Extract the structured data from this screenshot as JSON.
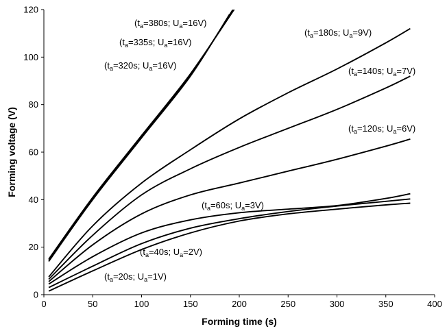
{
  "chart_data": {
    "type": "line",
    "xlabel": "Forming time (s)",
    "ylabel": "Forming voltage (V)",
    "xlim": [
      0,
      400
    ],
    "ylim": [
      0,
      120
    ],
    "xticks": [
      "0",
      "50",
      "100",
      "150",
      "200",
      "250",
      "300",
      "350",
      "400"
    ],
    "yticks": [
      "0",
      "20",
      "40",
      "60",
      "80",
      "100",
      "120"
    ],
    "grid": false,
    "series": [
      {
        "name": "(ta=20s; Ua=1V)",
        "x": [
          5,
          50,
          100,
          150,
          200,
          250,
          300,
          350,
          375
        ],
        "y": [
          1.5,
          10,
          19,
          26,
          31,
          34,
          36,
          37.8,
          38.5
        ]
      },
      {
        "name": "(ta=40s; Ua=2V)",
        "x": [
          5,
          50,
          100,
          150,
          200,
          250,
          300,
          350,
          375
        ],
        "y": [
          3,
          12,
          21.5,
          28,
          32,
          35,
          37.3,
          39.3,
          40.3
        ]
      },
      {
        "name": "(ta=60s; Ua=3V)",
        "x": [
          5,
          50,
          100,
          150,
          200,
          250,
          300,
          350,
          375
        ],
        "y": [
          4.5,
          16,
          26,
          31.5,
          34.5,
          36,
          37.5,
          40.5,
          42.5
        ]
      },
      {
        "name": "(ta=120s; Ua=6V)",
        "x": [
          5,
          50,
          100,
          150,
          200,
          250,
          300,
          350,
          375
        ],
        "y": [
          5.5,
          21,
          34,
          42,
          47,
          52,
          57,
          62.5,
          65.5
        ]
      },
      {
        "name": "(ta=140s; Ua=7V)",
        "x": [
          5,
          50,
          100,
          150,
          200,
          250,
          300,
          350,
          375
        ],
        "y": [
          6.5,
          25,
          42,
          53,
          62,
          70,
          78,
          87,
          92
        ]
      },
      {
        "name": "(ta=180s; Ua=9V)",
        "x": [
          5,
          50,
          100,
          150,
          200,
          250,
          300,
          350,
          375
        ],
        "y": [
          7.5,
          29,
          47,
          61,
          74,
          85,
          95,
          106,
          112
        ]
      },
      {
        "name": "(ta=320s; Ua=16V)",
        "x": [
          5,
          50,
          100,
          150,
          190
        ],
        "y": [
          14,
          40,
          66,
          92,
          118
        ]
      },
      {
        "name": "(ta=335s; Ua=16V)",
        "x": [
          5,
          50,
          100,
          150,
          195
        ],
        "y": [
          14.5,
          40.5,
          66.5,
          92.5,
          121
        ]
      },
      {
        "name": "(ta=380s; Ua=16V)",
        "x": [
          5,
          50,
          100,
          150,
          198
        ],
        "y": [
          15,
          41,
          67,
          93,
          122
        ]
      }
    ],
    "annotations": [
      {
        "pre": "(t",
        "sub1": "a",
        "mid": "=380s; U",
        "sub2": "a",
        "post": "=16V)"
      },
      {
        "pre": "(t",
        "sub1": "a",
        "mid": "=335s; U",
        "sub2": "a",
        "post": "=16V)"
      },
      {
        "pre": "(t",
        "sub1": "a",
        "mid": "=320s; U",
        "sub2": "a",
        "post": "=16V)"
      },
      {
        "pre": "(t",
        "sub1": "a",
        "mid": "=180s; U",
        "sub2": "a",
        "post": "=9V)"
      },
      {
        "pre": "(t",
        "sub1": "a",
        "mid": "=140s; U",
        "sub2": "a",
        "post": "=7V)"
      },
      {
        "pre": "(t",
        "sub1": "a",
        "mid": "=120s; U",
        "sub2": "a",
        "post": "=6V)"
      },
      {
        "pre": "(t",
        "sub1": "a",
        "mid": "=60s; U",
        "sub2": "a",
        "post": "=3V)"
      },
      {
        "pre": "(t",
        "sub1": "a",
        "mid": "=40s; U",
        "sub2": "a",
        "post": "=2V)"
      },
      {
        "pre": "(t",
        "sub1": "a",
        "mid": "=20s; U",
        "sub2": "a",
        "post": "=1V)"
      }
    ]
  }
}
